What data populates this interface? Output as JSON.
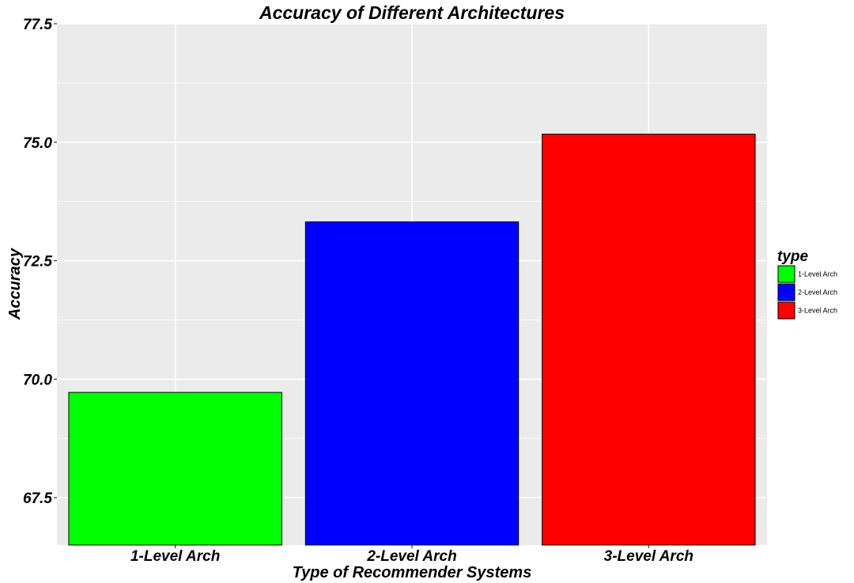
{
  "chart_data": {
    "type": "bar",
    "title": "Accuracy of Different Architectures",
    "xlabel": "Type of Recommender Systems",
    "ylabel": "Accuracy",
    "categories": [
      "1-Level Arch",
      "2-Level Arch",
      "3-Level Arch"
    ],
    "values": [
      69.72,
      73.32,
      75.17
    ],
    "colors": [
      "#00ff00",
      "#0000ff",
      "#ff0000"
    ],
    "ylim": [
      66.5,
      77.5
    ],
    "yticks": [
      67.5,
      70.0,
      72.5,
      75.0,
      77.5
    ],
    "ytick_labels": [
      "67.5",
      "70.0",
      "72.5",
      "75.0",
      "77.5"
    ],
    "grid": true,
    "panel_background": "#ebebeb",
    "legend": {
      "title": "type",
      "placement": "right",
      "entries": [
        "1-Level Arch",
        "2-Level Arch",
        "3-Level Arch"
      ]
    }
  }
}
